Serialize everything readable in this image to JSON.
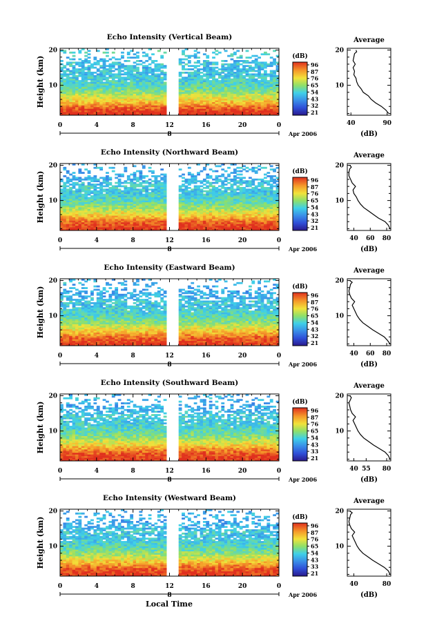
{
  "figure": {
    "xlabel": "Local Time",
    "date_label": "Apr 2006",
    "day_label": "8",
    "colorbar_label": "(dB)",
    "avg_title": "Average",
    "avg_xlabel": "(dB)",
    "ylabel": "Height (km)"
  },
  "chart_data": [
    {
      "type": "heatmap",
      "title": "Echo Intensity (Vertical Beam)",
      "ylabel": "Height (km)",
      "xlabel": "Local Time",
      "x_ticks": [
        "0",
        "4",
        "8",
        "12",
        "16",
        "20",
        "0"
      ],
      "y_ticks": [
        "10",
        "20"
      ],
      "xlim": [
        0,
        24
      ],
      "ylim": [
        1.5,
        20.5
      ],
      "data_gap_hours": [
        11.5,
        13.0
      ],
      "colorbar": {
        "label": "(dB)",
        "ticks": [
          "96",
          "87",
          "76",
          "65",
          "54",
          "43",
          "32",
          "21"
        ],
        "range": [
          21,
          96
        ]
      },
      "profile": {
        "title": "Average",
        "xlabel": "(dB)",
        "x_ticks": [
          "40",
          "90"
        ],
        "xlim": [
          35,
          95
        ],
        "heights": [
          2,
          3,
          4,
          5,
          6,
          7,
          8,
          9,
          10,
          11,
          12,
          13,
          14,
          15,
          16,
          17,
          18,
          19,
          19.5,
          20
        ],
        "values": [
          92,
          88,
          82,
          74,
          68,
          64,
          57,
          54,
          50,
          48,
          47,
          44,
          45,
          43,
          46,
          43,
          44,
          45,
          48,
          47
        ]
      }
    },
    {
      "type": "heatmap",
      "title": "Echo Intensity (Northward Beam)",
      "ylabel": "Height (km)",
      "xlabel": "Local Time",
      "x_ticks": [
        "0",
        "4",
        "8",
        "12",
        "16",
        "20",
        "0"
      ],
      "y_ticks": [
        "10",
        "20"
      ],
      "xlim": [
        0,
        24
      ],
      "ylim": [
        1.5,
        20.5
      ],
      "data_gap_hours": [
        11.5,
        13.0
      ],
      "colorbar": {
        "label": "(dB)",
        "ticks": [
          "96",
          "87",
          "76",
          "65",
          "54",
          "43",
          "32",
          "21"
        ],
        "range": [
          21,
          96
        ]
      },
      "profile": {
        "title": "Average",
        "xlabel": "(dB)",
        "x_ticks": [
          "40",
          "60",
          "80"
        ],
        "xlim": [
          32,
          85
        ],
        "heights": [
          2,
          3,
          4,
          5,
          6,
          7,
          8,
          9,
          10,
          11,
          12,
          13,
          14,
          15,
          16,
          17,
          18,
          19,
          19.5,
          20
        ],
        "values": [
          84,
          82,
          78,
          70,
          64,
          58,
          52,
          48,
          45,
          43,
          40,
          39,
          42,
          38,
          36,
          34,
          34,
          35,
          37,
          35
        ]
      }
    },
    {
      "type": "heatmap",
      "title": "Echo Intensity (Eastward Beam)",
      "ylabel": "Height (km)",
      "xlabel": "Local Time",
      "x_ticks": [
        "0",
        "4",
        "8",
        "12",
        "16",
        "20",
        "0"
      ],
      "y_ticks": [
        "10",
        "20"
      ],
      "xlim": [
        0,
        24
      ],
      "ylim": [
        1.5,
        20.5
      ],
      "data_gap_hours": [
        11.5,
        13.0
      ],
      "colorbar": {
        "label": "(dB)",
        "ticks": [
          "96",
          "87",
          "76",
          "65",
          "54",
          "43",
          "32",
          "21"
        ],
        "range": [
          21,
          96
        ]
      },
      "profile": {
        "title": "Average",
        "xlabel": "(dB)",
        "x_ticks": [
          "40",
          "60",
          "80"
        ],
        "xlim": [
          32,
          85
        ],
        "heights": [
          2,
          3,
          4,
          5,
          6,
          7,
          8,
          9,
          10,
          11,
          12,
          13,
          14,
          15,
          16,
          17,
          18,
          19,
          19.5,
          20
        ],
        "values": [
          84,
          81,
          77,
          70,
          63,
          57,
          51,
          47,
          44,
          42,
          40,
          38,
          41,
          37,
          35,
          34,
          35,
          36,
          38,
          35
        ]
      }
    },
    {
      "type": "heatmap",
      "title": "Echo Intensity (Southward Beam)",
      "ylabel": "Height (km)",
      "xlabel": "Local Time",
      "x_ticks": [
        "0",
        "4",
        "8",
        "12",
        "16",
        "20",
        "0"
      ],
      "y_ticks": [
        "10",
        "20"
      ],
      "xlim": [
        0,
        24
      ],
      "ylim": [
        1.5,
        20.5
      ],
      "data_gap_hours": [
        11.5,
        13.0
      ],
      "colorbar": {
        "label": "(dB)",
        "ticks": [
          "96",
          "87",
          "76",
          "65",
          "54",
          "43",
          "33",
          "21"
        ],
        "range": [
          21,
          96
        ]
      },
      "profile": {
        "title": "Average",
        "xlabel": "(dB)",
        "x_ticks": [
          "40",
          "55",
          "80"
        ],
        "xlim": [
          32,
          85
        ],
        "heights": [
          2,
          3,
          4,
          5,
          6,
          7,
          8,
          9,
          10,
          11,
          12,
          13,
          14,
          15,
          16,
          17,
          18,
          19,
          19.5,
          20
        ],
        "values": [
          84,
          82,
          78,
          71,
          64,
          58,
          52,
          48,
          45,
          43,
          41,
          39,
          42,
          38,
          36,
          35,
          34,
          36,
          37,
          35
        ]
      }
    },
    {
      "type": "heatmap",
      "title": "Echo Intensity (Westward Beam)",
      "ylabel": "Height (km)",
      "xlabel": "Local Time",
      "x_ticks": [
        "0",
        "4",
        "8",
        "12",
        "16",
        "20",
        "0"
      ],
      "y_ticks": [
        "10",
        "20"
      ],
      "xlim": [
        0,
        24
      ],
      "ylim": [
        1.5,
        20.5
      ],
      "data_gap_hours": [
        11.5,
        13.0
      ],
      "colorbar": {
        "label": "(dB)",
        "ticks": [
          "96",
          "87",
          "76",
          "65",
          "54",
          "43",
          "33",
          "21"
        ],
        "range": [
          21,
          96
        ]
      },
      "profile": {
        "title": "Average",
        "xlabel": "(dB)",
        "x_ticks": [
          "40",
          "80"
        ],
        "xlim": [
          32,
          85
        ],
        "heights": [
          2,
          3,
          4,
          5,
          6,
          7,
          8,
          9,
          10,
          11,
          12,
          13,
          14,
          15,
          16,
          17,
          18,
          19,
          19.5,
          20
        ],
        "values": [
          84,
          82,
          77,
          70,
          63,
          57,
          51,
          47,
          44,
          42,
          40,
          38,
          41,
          37,
          35,
          34,
          35,
          36,
          38,
          35
        ]
      }
    }
  ]
}
